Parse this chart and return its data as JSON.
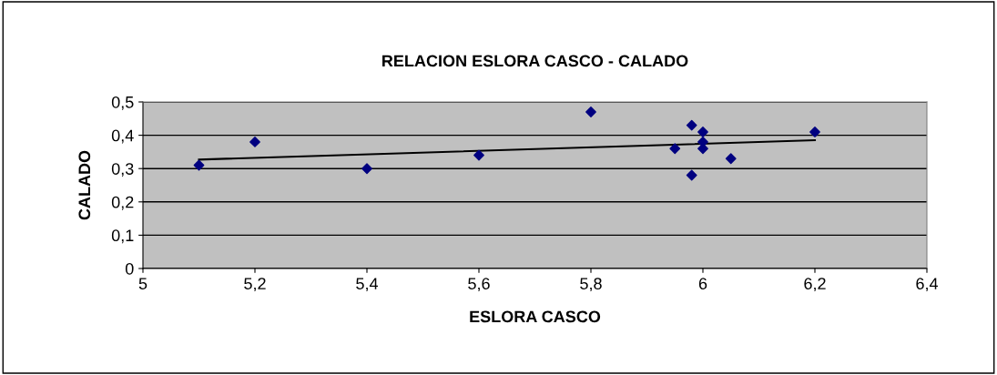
{
  "chart_data": {
    "type": "scatter",
    "title": "RELACION ESLORA CASCO - CALADO",
    "xlabel": "ESLORA CASCO",
    "ylabel": "CALADO",
    "xlim": [
      5,
      6.4
    ],
    "xticks": [
      {
        "value": 5,
        "label": "5"
      },
      {
        "value": 5.2,
        "label": "5,2"
      },
      {
        "value": 5.4,
        "label": "5,4"
      },
      {
        "value": 5.6,
        "label": "5,6"
      },
      {
        "value": 5.8,
        "label": "5,8"
      },
      {
        "value": 6,
        "label": "6"
      },
      {
        "value": 6.2,
        "label": "6,2"
      },
      {
        "value": 6.4,
        "label": "6,4"
      }
    ],
    "ylim": [
      0,
      0.5
    ],
    "yticks": [
      {
        "value": 0,
        "label": "0"
      },
      {
        "value": 0.1,
        "label": "0,1"
      },
      {
        "value": 0.2,
        "label": "0,2"
      },
      {
        "value": 0.3,
        "label": "0,3"
      },
      {
        "value": 0.4,
        "label": "0,4"
      },
      {
        "value": 0.5,
        "label": "0,5"
      }
    ],
    "grid": "y",
    "series": [
      {
        "marker": "diamond",
        "color": "#000080",
        "x": [
          5.1,
          5.2,
          5.4,
          5.6,
          5.8,
          5.95,
          5.98,
          5.98,
          6.0,
          6.0,
          6.0,
          6.05,
          6.2
        ],
        "values": [
          0.31,
          0.38,
          0.3,
          0.34,
          0.47,
          0.36,
          0.43,
          0.28,
          0.41,
          0.38,
          0.36,
          0.33,
          0.41
        ]
      },
      {
        "type": "line",
        "marker": "none",
        "color": "#000000",
        "x": [
          5.1,
          6.2
        ],
        "values": [
          0.327,
          0.385
        ]
      }
    ]
  }
}
